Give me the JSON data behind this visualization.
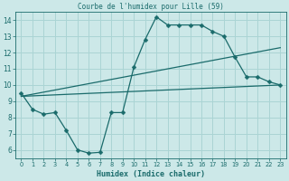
{
  "title": "Courbe de l'humidex pour Lille (59)",
  "xlabel": "Humidex (Indice chaleur)",
  "bg_color": "#cce8e8",
  "grid_color": "#aad4d4",
  "line_color": "#1a6b6b",
  "text_color": "#1a6b6b",
  "xlim": [
    -0.5,
    23.5
  ],
  "ylim": [
    5.5,
    14.5
  ],
  "xticks": [
    0,
    1,
    2,
    3,
    4,
    5,
    6,
    7,
    8,
    9,
    10,
    11,
    12,
    13,
    14,
    15,
    16,
    17,
    18,
    19,
    20,
    21,
    22,
    23
  ],
  "yticks": [
    6,
    7,
    8,
    9,
    10,
    11,
    12,
    13,
    14
  ],
  "curve1_x": [
    0,
    1,
    2,
    3,
    4,
    5,
    6,
    7,
    8,
    9,
    10,
    11,
    12,
    13,
    14,
    15,
    16,
    17,
    18,
    19,
    20,
    21,
    22,
    23
  ],
  "curve1_y": [
    9.5,
    8.5,
    8.2,
    8.3,
    7.2,
    6.0,
    5.8,
    5.85,
    8.3,
    8.3,
    11.1,
    12.8,
    14.2,
    13.7,
    13.7,
    13.7,
    13.7,
    13.3,
    13.0,
    11.7,
    10.5,
    10.5,
    10.2,
    10.0
  ],
  "curve2_x": [
    0,
    23
  ],
  "curve2_y": [
    9.3,
    10.0
  ],
  "curve3_x": [
    0,
    23
  ],
  "curve3_y": [
    9.3,
    12.3
  ],
  "marker": "D",
  "marker_size": 2.5
}
